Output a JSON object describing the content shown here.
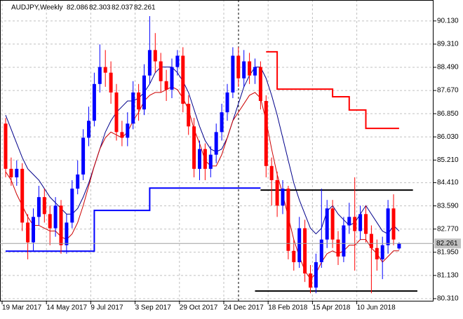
{
  "chart_data": {
    "type": "candlestick",
    "title": "AUDJPY,Weekly",
    "categories": [
      "19 Mar 2017",
      null,
      null,
      null,
      null,
      null,
      null,
      null,
      "14 May 2017",
      null,
      null,
      null,
      null,
      null,
      null,
      null,
      "9 Jul 2017",
      null,
      null,
      null,
      null,
      null,
      null,
      null,
      "3 Sep 2017",
      null,
      null,
      null,
      null,
      null,
      null,
      null,
      "29 Oct 2017",
      null,
      null,
      null,
      null,
      null,
      null,
      null,
      "24 Dec 2017",
      null,
      null,
      null,
      null,
      null,
      null,
      null,
      "18 Feb 2018",
      null,
      null,
      null,
      null,
      null,
      null,
      null,
      "15 Apr 2018",
      null,
      null,
      null,
      null,
      null,
      null,
      null,
      "10 Jun 2018",
      null,
      null,
      null,
      null,
      null,
      null,
      null
    ],
    "open": [
      86.5,
      84.9,
      84.6,
      84.9,
      83.0,
      82.3,
      83.2,
      83.9,
      83.3,
      82.8,
      83.6,
      82.2,
      83.0,
      84.2,
      84.7,
      86.0,
      86.6,
      87.9,
      88.5,
      88.3,
      87.6,
      86.2,
      86.0,
      86.5,
      87.6,
      87.0,
      88.2,
      89.1,
      88.7,
      88.0,
      87.7,
      88.5,
      88.9,
      87.2,
      86.4,
      84.9,
      85.6,
      84.9,
      85.4,
      86.2,
      86.9,
      87.6,
      88.9,
      88.1,
      88.7,
      88.2,
      88.5,
      87.3,
      85.0,
      84.5,
      83.6,
      84.2,
      82.0,
      81.6,
      82.8,
      81.2,
      80.7,
      81.6,
      82.4,
      83.5,
      82.4,
      81.8,
      82.9,
      83.2,
      82.7,
      83.3,
      82.6,
      82.1,
      81.7,
      82.2,
      83.5,
      82.086
    ],
    "high": [
      86.7,
      85.3,
      85.2,
      85.1,
      83.3,
      83.5,
      84.3,
      84.2,
      83.6,
      83.9,
      83.8,
      83.3,
      84.5,
      85.2,
      86.3,
      87.1,
      88.3,
      89.3,
      89.1,
      88.7,
      87.9,
      86.6,
      86.9,
      88.0,
      87.9,
      88.6,
      90.3,
      89.7,
      89.0,
      88.4,
      88.8,
      89.1,
      89.2,
      87.5,
      86.7,
      85.9,
      85.8,
      85.7,
      86.5,
      87.2,
      87.9,
      89.2,
      89.2,
      89.1,
      89.0,
      88.8,
      88.7,
      87.5,
      85.3,
      84.8,
      84.5,
      84.3,
      82.4,
      83.2,
      83.1,
      81.5,
      81.9,
      84.2,
      83.8,
      83.8,
      82.7,
      83.2,
      83.7,
      84.6,
      83.6,
      83.6,
      82.9,
      82.4,
      82.5,
      83.8,
      84.0,
      82.303
    ],
    "low": [
      84.6,
      84.3,
      84.3,
      82.7,
      81.7,
      82.0,
      82.9,
      83.0,
      82.2,
      82.5,
      81.9,
      81.9,
      82.8,
      84.0,
      84.5,
      85.7,
      86.4,
      87.6,
      87.8,
      87.2,
      85.9,
      85.7,
      85.7,
      86.3,
      86.6,
      86.8,
      87.9,
      88.3,
      87.6,
      87.3,
      87.4,
      88.2,
      86.9,
      86.1,
      84.6,
      84.5,
      84.5,
      84.6,
      85.1,
      85.9,
      86.6,
      87.4,
      87.8,
      87.8,
      87.9,
      87.9,
      87.0,
      84.6,
      83.6,
      83.2,
      83.3,
      81.7,
      81.3,
      81.4,
      80.9,
      80.5,
      80.5,
      81.4,
      82.1,
      82.1,
      81.5,
      81.6,
      82.6,
      81.3,
      82.4,
      82.3,
      80.5,
      81.3,
      81.0,
      81.9,
      82.2,
      82.037
    ],
    "close": [
      84.9,
      84.6,
      84.9,
      83.0,
      82.3,
      83.2,
      83.9,
      83.3,
      82.8,
      83.6,
      82.2,
      83.0,
      84.2,
      84.7,
      86.0,
      86.6,
      87.9,
      88.5,
      88.3,
      87.6,
      86.2,
      86.0,
      86.5,
      87.6,
      87.0,
      88.2,
      89.1,
      88.7,
      88.0,
      87.7,
      88.5,
      88.9,
      87.2,
      86.4,
      84.9,
      85.6,
      84.9,
      85.4,
      86.2,
      86.9,
      87.6,
      88.9,
      88.1,
      88.7,
      88.2,
      88.5,
      87.3,
      85.0,
      84.5,
      83.6,
      84.2,
      82.0,
      81.6,
      82.8,
      81.2,
      80.7,
      81.6,
      82.4,
      83.5,
      82.4,
      81.8,
      82.9,
      83.2,
      82.7,
      83.3,
      82.6,
      82.1,
      81.7,
      82.2,
      83.5,
      82.4,
      82.261
    ],
    "up_color": "#0000ff",
    "down_color": "#ff0000",
    "lines": [
      {
        "color": "#00008b",
        "values": [
          86.8,
          86.3,
          85.8,
          85.3,
          84.9,
          84.7,
          84.5,
          84.2,
          83.9,
          83.7,
          83.5,
          83.3,
          83.3,
          83.5,
          83.9,
          84.4,
          85.0,
          85.6,
          86.2,
          86.6,
          86.9,
          87.1,
          87.3,
          87.3,
          87.4,
          87.6,
          87.9,
          88.3,
          88.5,
          88.5,
          88.5,
          88.3,
          88.0,
          87.6,
          87.0,
          86.4,
          85.9,
          85.6,
          85.5,
          85.6,
          86.0,
          86.6,
          87.2,
          87.8,
          88.2,
          88.5,
          88.5,
          88.1,
          87.5,
          86.8,
          86.0,
          85.2,
          84.4,
          83.8,
          83.3,
          82.8,
          82.6,
          82.8,
          83.4,
          83.6,
          83.3,
          83.1,
          82.9,
          83.0,
          83.3,
          83.6,
          83.3,
          83.0,
          82.7,
          82.6,
          82.9,
          82.7
        ]
      },
      {
        "color": "#cc0000",
        "values": [
          84.8,
          84.5,
          84.0,
          83.6,
          83.2,
          82.9,
          82.9,
          82.8,
          82.7,
          82.7,
          82.5,
          82.4,
          82.6,
          83.0,
          83.6,
          84.3,
          85.0,
          85.6,
          86.0,
          86.2,
          86.1,
          86.0,
          86.2,
          86.6,
          86.9,
          87.3,
          87.5,
          87.6,
          87.6,
          87.7,
          87.8,
          87.7,
          87.4,
          87.0,
          86.3,
          85.8,
          85.2,
          85.0,
          85.0,
          85.4,
          86.0,
          86.6,
          86.9,
          87.2,
          87.5,
          87.6,
          87.4,
          86.6,
          85.6,
          84.7,
          84.0,
          83.2,
          82.4,
          81.8,
          81.3,
          81.0,
          81.2,
          81.6,
          81.9,
          82.0,
          81.9,
          82.0,
          82.2,
          82.2,
          82.4,
          82.4,
          82.1,
          81.9,
          81.6,
          81.8,
          82.0,
          82.0
        ]
      }
    ],
    "levels": [
      {
        "color": "#0000ff",
        "x": [
          0,
          16,
          16,
          26,
          26,
          46
        ],
        "values": [
          81.99,
          81.99,
          83.43,
          83.43,
          84.22,
          84.22
        ]
      },
      {
        "color": "#ff0000",
        "x": [
          47,
          49,
          49,
          59,
          59,
          62,
          62,
          65,
          65,
          71
        ],
        "values": [
          89.04,
          89.04,
          87.72,
          87.72,
          87.45,
          87.45,
          86.98,
          86.98,
          86.33,
          86.33
        ]
      },
      {
        "color": "#000000",
        "x": [
          46,
          73.5
        ],
        "values": [
          84.15,
          84.15
        ]
      },
      {
        "color": "#000000",
        "x": [
          45,
          74.3
        ],
        "values": [
          80.58,
          80.58
        ]
      }
    ],
    "ylim": [
      80.21,
      90.87
    ],
    "yticks": [
      {
        "value": 90.13,
        "label": "90.130"
      },
      {
        "value": 89.31,
        "label": "89.310"
      },
      {
        "value": 88.49,
        "label": "88.490"
      },
      {
        "value": 87.67,
        "label": "87.670"
      },
      {
        "value": 86.85,
        "label": "86.850"
      },
      {
        "value": 86.03,
        "label": "86.030"
      },
      {
        "value": 85.21,
        "label": "85.210"
      },
      {
        "value": 84.41,
        "label": "84.410"
      },
      {
        "value": 83.59,
        "label": "83.590"
      },
      {
        "value": 82.77,
        "label": "82.770"
      },
      {
        "value": 81.95,
        "label": "81.950"
      },
      {
        "value": 81.13,
        "label": "81.130"
      },
      {
        "value": 80.31,
        "label": "80.310"
      }
    ],
    "grid": true
  }
}
